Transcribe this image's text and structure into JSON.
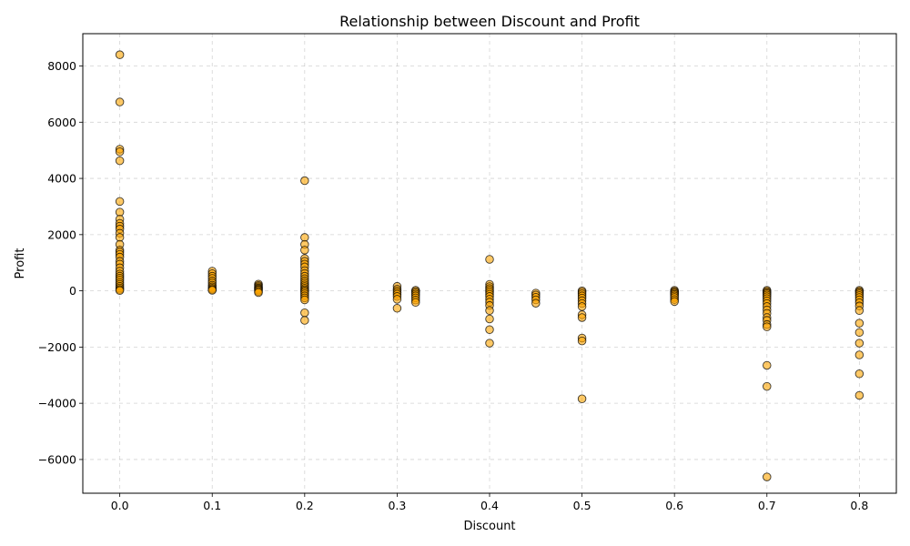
{
  "chart_data": {
    "type": "scatter",
    "title": "Relationship between Discount and Profit",
    "xlabel": "Discount",
    "ylabel": "Profit",
    "xlim": [
      -0.04,
      0.84
    ],
    "ylim": [
      -7200,
      9150
    ],
    "xticks": [
      0.0,
      0.1,
      0.2,
      0.3,
      0.4,
      0.5,
      0.6,
      0.7,
      0.8
    ],
    "xtick_labels": [
      "0.0",
      "0.1",
      "0.2",
      "0.3",
      "0.4",
      "0.5",
      "0.6",
      "0.7",
      "0.8"
    ],
    "yticks": [
      -6000,
      -4000,
      -2000,
      0,
      2000,
      4000,
      6000,
      8000
    ],
    "ytick_labels": [
      "−6000",
      "−4000",
      "−2000",
      "0",
      "2000",
      "4000",
      "6000",
      "8000"
    ],
    "grid": true,
    "marker_color": "#FFA500",
    "marker_edge_color": "#000000",
    "marker_alpha": 0.6,
    "points": [
      [
        0.0,
        8400
      ],
      [
        0.0,
        6720
      ],
      [
        0.0,
        5040
      ],
      [
        0.0,
        4950
      ],
      [
        0.0,
        4630
      ],
      [
        0.0,
        3180
      ],
      [
        0.0,
        2800
      ],
      [
        0.0,
        2550
      ],
      [
        0.0,
        2400
      ],
      [
        0.0,
        2300
      ],
      [
        0.0,
        2200
      ],
      [
        0.0,
        2050
      ],
      [
        0.0,
        1900
      ],
      [
        0.0,
        1650
      ],
      [
        0.0,
        1450
      ],
      [
        0.0,
        1380
      ],
      [
        0.0,
        1300
      ],
      [
        0.0,
        1200
      ],
      [
        0.0,
        1050
      ],
      [
        0.0,
        950
      ],
      [
        0.0,
        820
      ],
      [
        0.0,
        700
      ],
      [
        0.0,
        600
      ],
      [
        0.0,
        520
      ],
      [
        0.0,
        450
      ],
      [
        0.0,
        380
      ],
      [
        0.0,
        300
      ],
      [
        0.0,
        230
      ],
      [
        0.0,
        160
      ],
      [
        0.0,
        100
      ],
      [
        0.0,
        50
      ],
      [
        0.0,
        10
      ],
      [
        0.1,
        700
      ],
      [
        0.1,
        610
      ],
      [
        0.1,
        520
      ],
      [
        0.1,
        440
      ],
      [
        0.1,
        350
      ],
      [
        0.1,
        280
      ],
      [
        0.1,
        200
      ],
      [
        0.1,
        140
      ],
      [
        0.1,
        90
      ],
      [
        0.1,
        50
      ],
      [
        0.1,
        20
      ],
      [
        0.15,
        240
      ],
      [
        0.15,
        190
      ],
      [
        0.15,
        150
      ],
      [
        0.15,
        110
      ],
      [
        0.15,
        80
      ],
      [
        0.15,
        50
      ],
      [
        0.15,
        20
      ],
      [
        0.15,
        -20
      ],
      [
        0.15,
        -60
      ],
      [
        0.2,
        3920
      ],
      [
        0.2,
        1900
      ],
      [
        0.2,
        1650
      ],
      [
        0.2,
        1450
      ],
      [
        0.2,
        1150
      ],
      [
        0.2,
        1050
      ],
      [
        0.2,
        950
      ],
      [
        0.2,
        850
      ],
      [
        0.2,
        720
      ],
      [
        0.2,
        620
      ],
      [
        0.2,
        520
      ],
      [
        0.2,
        430
      ],
      [
        0.2,
        350
      ],
      [
        0.2,
        280
      ],
      [
        0.2,
        210
      ],
      [
        0.2,
        150
      ],
      [
        0.2,
        90
      ],
      [
        0.2,
        40
      ],
      [
        0.2,
        0
      ],
      [
        0.2,
        -50
      ],
      [
        0.2,
        -110
      ],
      [
        0.2,
        -180
      ],
      [
        0.2,
        -250
      ],
      [
        0.2,
        -320
      ],
      [
        0.2,
        -780
      ],
      [
        0.2,
        -1050
      ],
      [
        0.3,
        160
      ],
      [
        0.3,
        60
      ],
      [
        0.3,
        0
      ],
      [
        0.3,
        -60
      ],
      [
        0.3,
        -120
      ],
      [
        0.3,
        -200
      ],
      [
        0.3,
        -300
      ],
      [
        0.3,
        -620
      ],
      [
        0.32,
        20
      ],
      [
        0.32,
        -20
      ],
      [
        0.32,
        -70
      ],
      [
        0.32,
        -120
      ],
      [
        0.32,
        -180
      ],
      [
        0.32,
        -250
      ],
      [
        0.32,
        -330
      ],
      [
        0.32,
        -410
      ],
      [
        0.4,
        1120
      ],
      [
        0.4,
        230
      ],
      [
        0.4,
        150
      ],
      [
        0.4,
        80
      ],
      [
        0.4,
        20
      ],
      [
        0.4,
        -50
      ],
      [
        0.4,
        -120
      ],
      [
        0.4,
        -200
      ],
      [
        0.4,
        -300
      ],
      [
        0.4,
        -400
      ],
      [
        0.4,
        -520
      ],
      [
        0.4,
        -700
      ],
      [
        0.4,
        -1000
      ],
      [
        0.4,
        -1380
      ],
      [
        0.4,
        -1860
      ],
      [
        0.45,
        -80
      ],
      [
        0.45,
        -150
      ],
      [
        0.45,
        -230
      ],
      [
        0.45,
        -320
      ],
      [
        0.45,
        -440
      ],
      [
        0.5,
        0
      ],
      [
        0.5,
        -50
      ],
      [
        0.5,
        -110
      ],
      [
        0.5,
        -180
      ],
      [
        0.5,
        -260
      ],
      [
        0.5,
        -350
      ],
      [
        0.5,
        -450
      ],
      [
        0.5,
        -560
      ],
      [
        0.5,
        -850
      ],
      [
        0.5,
        -950
      ],
      [
        0.5,
        -1680
      ],
      [
        0.5,
        -1780
      ],
      [
        0.5,
        -3840
      ],
      [
        0.6,
        20
      ],
      [
        0.6,
        -20
      ],
      [
        0.6,
        -50
      ],
      [
        0.6,
        -90
      ],
      [
        0.6,
        -130
      ],
      [
        0.6,
        -180
      ],
      [
        0.6,
        -240
      ],
      [
        0.6,
        -310
      ],
      [
        0.6,
        -380
      ],
      [
        0.7,
        20
      ],
      [
        0.7,
        -20
      ],
      [
        0.7,
        -60
      ],
      [
        0.7,
        -100
      ],
      [
        0.7,
        -150
      ],
      [
        0.7,
        -210
      ],
      [
        0.7,
        -280
      ],
      [
        0.7,
        -360
      ],
      [
        0.7,
        -450
      ],
      [
        0.7,
        -560
      ],
      [
        0.7,
        -680
      ],
      [
        0.7,
        -800
      ],
      [
        0.7,
        -950
      ],
      [
        0.7,
        -1050
      ],
      [
        0.7,
        -1200
      ],
      [
        0.7,
        -1280
      ],
      [
        0.7,
        -2650
      ],
      [
        0.7,
        -3400
      ],
      [
        0.7,
        -6620
      ],
      [
        0.8,
        20
      ],
      [
        0.8,
        -20
      ],
      [
        0.8,
        -60
      ],
      [
        0.8,
        -110
      ],
      [
        0.8,
        -170
      ],
      [
        0.8,
        -240
      ],
      [
        0.8,
        -320
      ],
      [
        0.8,
        -420
      ],
      [
        0.8,
        -540
      ],
      [
        0.8,
        -700
      ],
      [
        0.8,
        -1150
      ],
      [
        0.8,
        -1480
      ],
      [
        0.8,
        -1860
      ],
      [
        0.8,
        -2280
      ],
      [
        0.8,
        -2950
      ],
      [
        0.8,
        -3720
      ]
    ]
  }
}
